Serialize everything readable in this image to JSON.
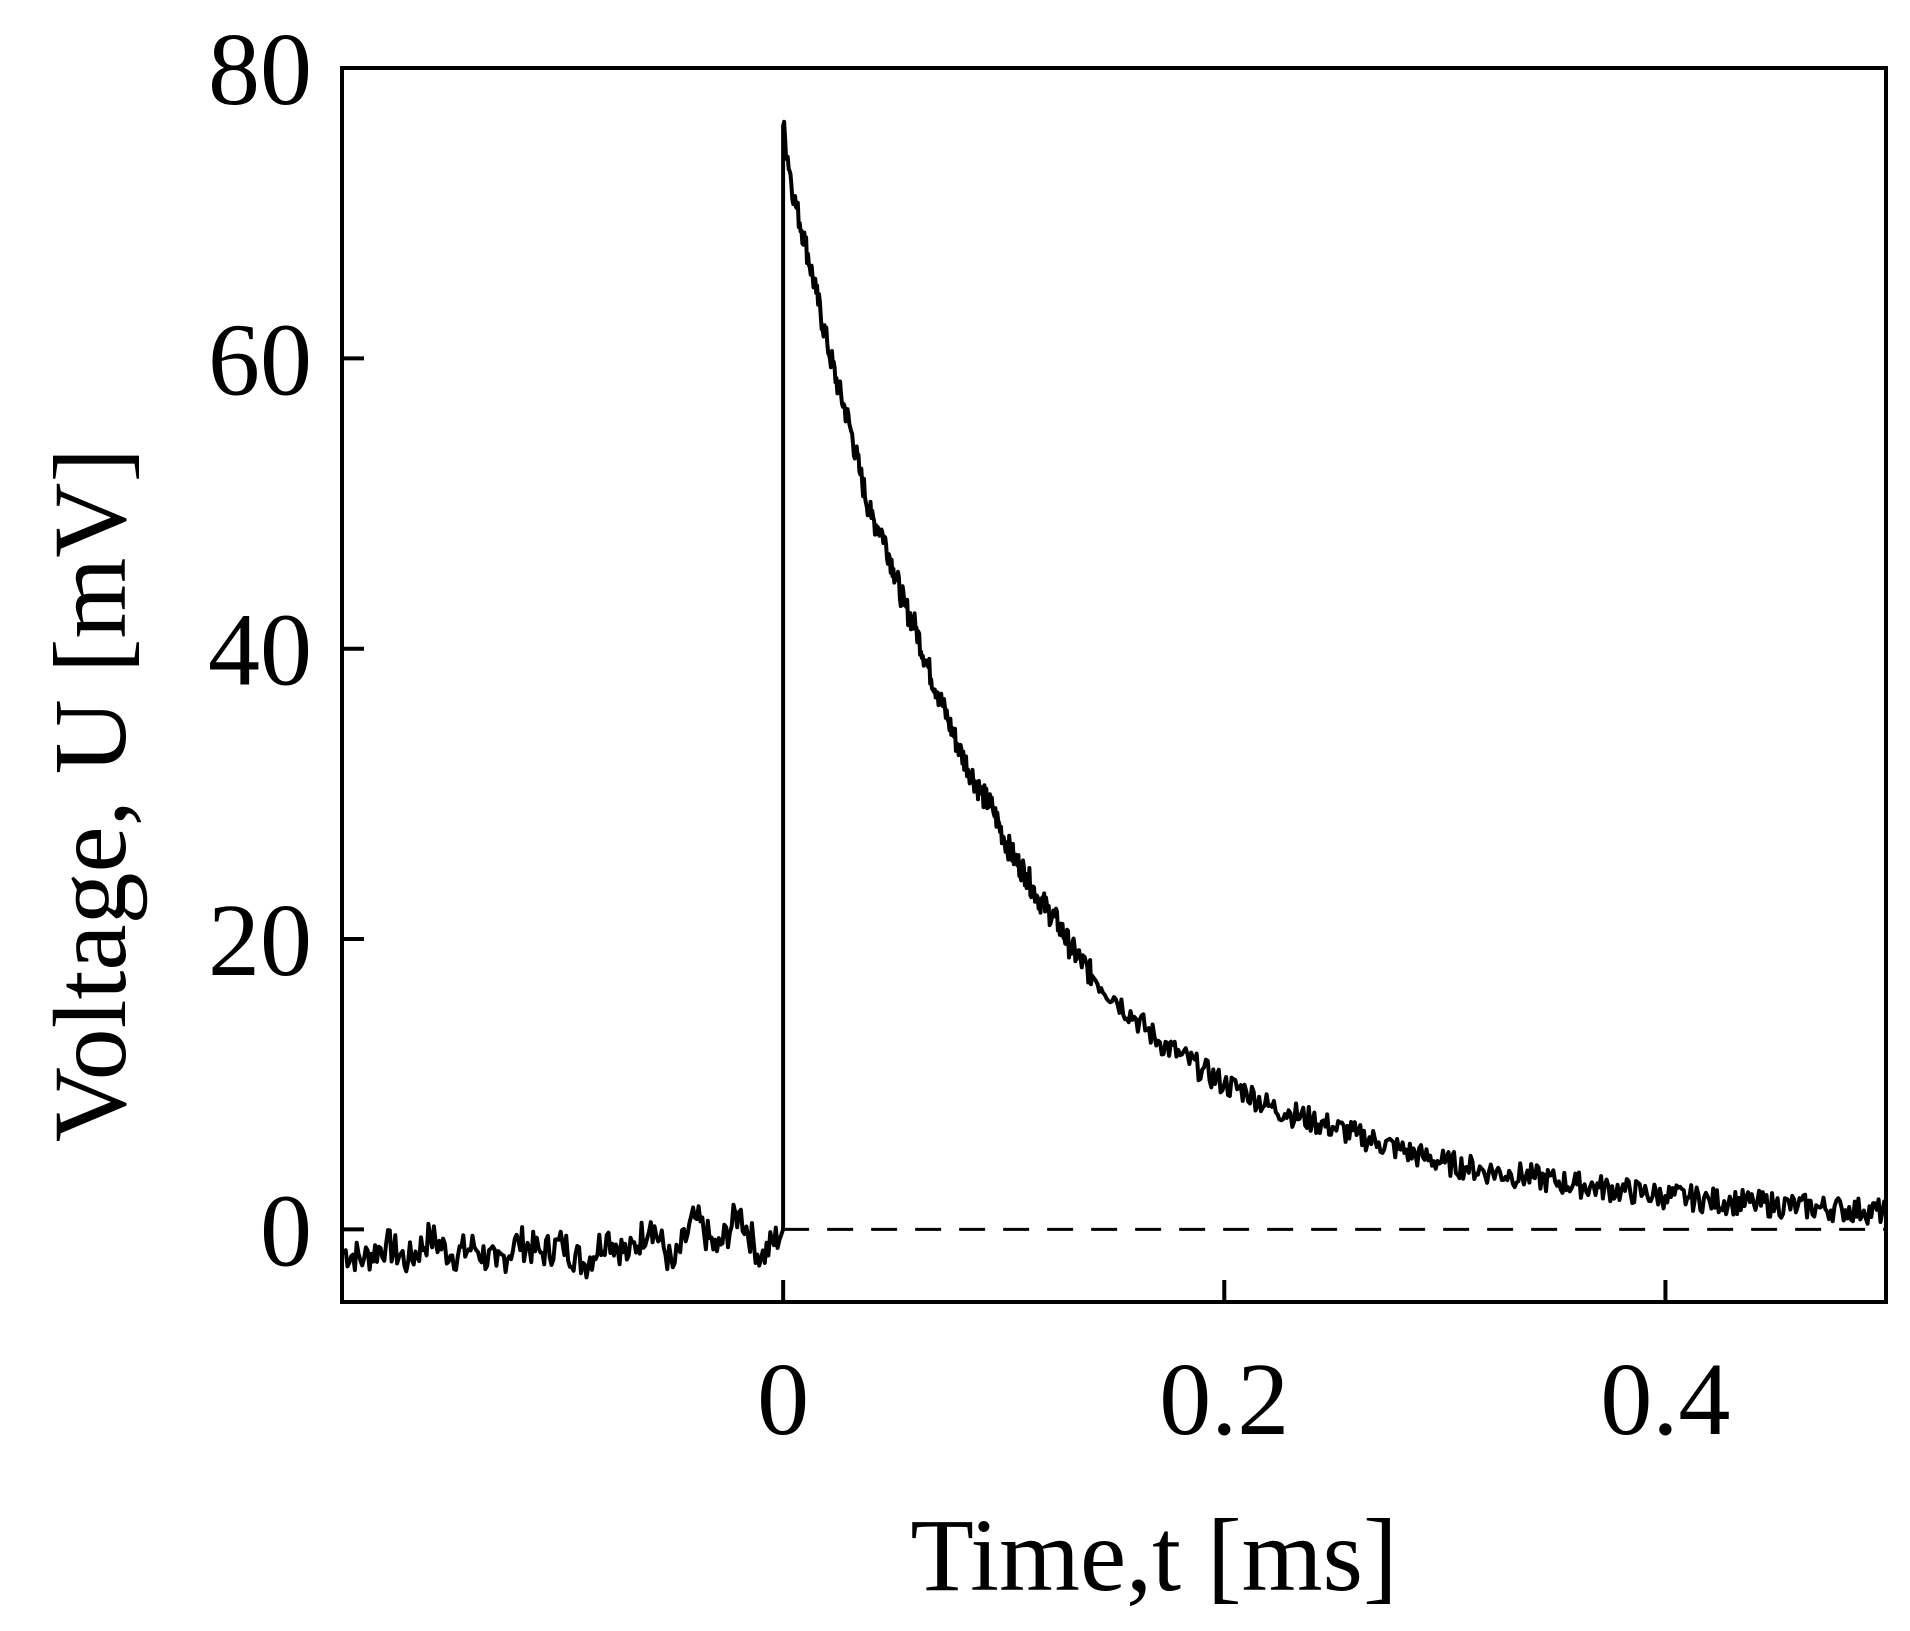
{
  "chart_data": {
    "type": "line",
    "xlabel": "Time,t [ms]",
    "ylabel": "Voltage, U [mV]",
    "xlim": [
      -0.2,
      0.5
    ],
    "ylim": [
      -5,
      80
    ],
    "xticks": [
      0,
      0.2,
      0.4
    ],
    "xtick_labels": [
      "0",
      "0.2",
      "0.4"
    ],
    "yticks": [
      0,
      20,
      40,
      60,
      80
    ],
    "ytick_labels": [
      "0",
      "20",
      "40",
      "60",
      "80"
    ],
    "grid": false,
    "legend": "none",
    "baseline": {
      "y": 0,
      "style": "dashed"
    },
    "series": [
      {
        "color": "#000000",
        "x": [
          -0.2,
          -0.19,
          -0.18,
          -0.17,
          -0.16,
          -0.15,
          -0.14,
          -0.13,
          -0.12,
          -0.11,
          -0.1,
          -0.09,
          -0.08,
          -0.07,
          -0.06,
          -0.05,
          -0.04,
          -0.03,
          -0.02,
          -0.01,
          0.0,
          0.0,
          0.005,
          0.01,
          0.015,
          0.02,
          0.025,
          0.03,
          0.035,
          0.04,
          0.045,
          0.05,
          0.055,
          0.06,
          0.065,
          0.07,
          0.075,
          0.08,
          0.085,
          0.09,
          0.095,
          0.1,
          0.105,
          0.11,
          0.115,
          0.12,
          0.125,
          0.13,
          0.135,
          0.14,
          0.15,
          0.16,
          0.17,
          0.18,
          0.19,
          0.2,
          0.21,
          0.22,
          0.23,
          0.24,
          0.25,
          0.26,
          0.27,
          0.28,
          0.29,
          0.3,
          0.31,
          0.32,
          0.33,
          0.34,
          0.35,
          0.36,
          0.37,
          0.38,
          0.39,
          0.4,
          0.41,
          0.42,
          0.43,
          0.44,
          0.45,
          0.46,
          0.47,
          0.48,
          0.49,
          0.5
        ],
        "y": [
          -1.5,
          -2.0,
          -1.0,
          -2.2,
          -0.5,
          -1.8,
          -1.2,
          -2.5,
          -0.8,
          -1.6,
          -1.0,
          -2.4,
          -0.4,
          -1.8,
          0.5,
          -2.6,
          0.8,
          -1.5,
          1.2,
          -2.0,
          0.0,
          76.0,
          71.0,
          68.0,
          64.5,
          61.0,
          58.0,
          55.5,
          52.0,
          49.0,
          48.0,
          45.5,
          43.0,
          41.5,
          39.0,
          37.0,
          35.0,
          33.0,
          31.5,
          30.0,
          29.0,
          27.0,
          25.5,
          24.5,
          23.0,
          22.0,
          21.0,
          19.5,
          18.5,
          17.5,
          16.0,
          14.5,
          13.0,
          12.0,
          11.0,
          10.0,
          9.5,
          8.5,
          8.0,
          7.5,
          7.0,
          6.5,
          6.0,
          5.5,
          5.0,
          4.6,
          4.3,
          4.0,
          3.8,
          3.6,
          3.3,
          3.1,
          2.9,
          2.7,
          2.5,
          2.3,
          2.2,
          2.0,
          1.9,
          1.8,
          1.7,
          1.6,
          1.5,
          1.4,
          1.3,
          1.2
        ]
      }
    ]
  }
}
